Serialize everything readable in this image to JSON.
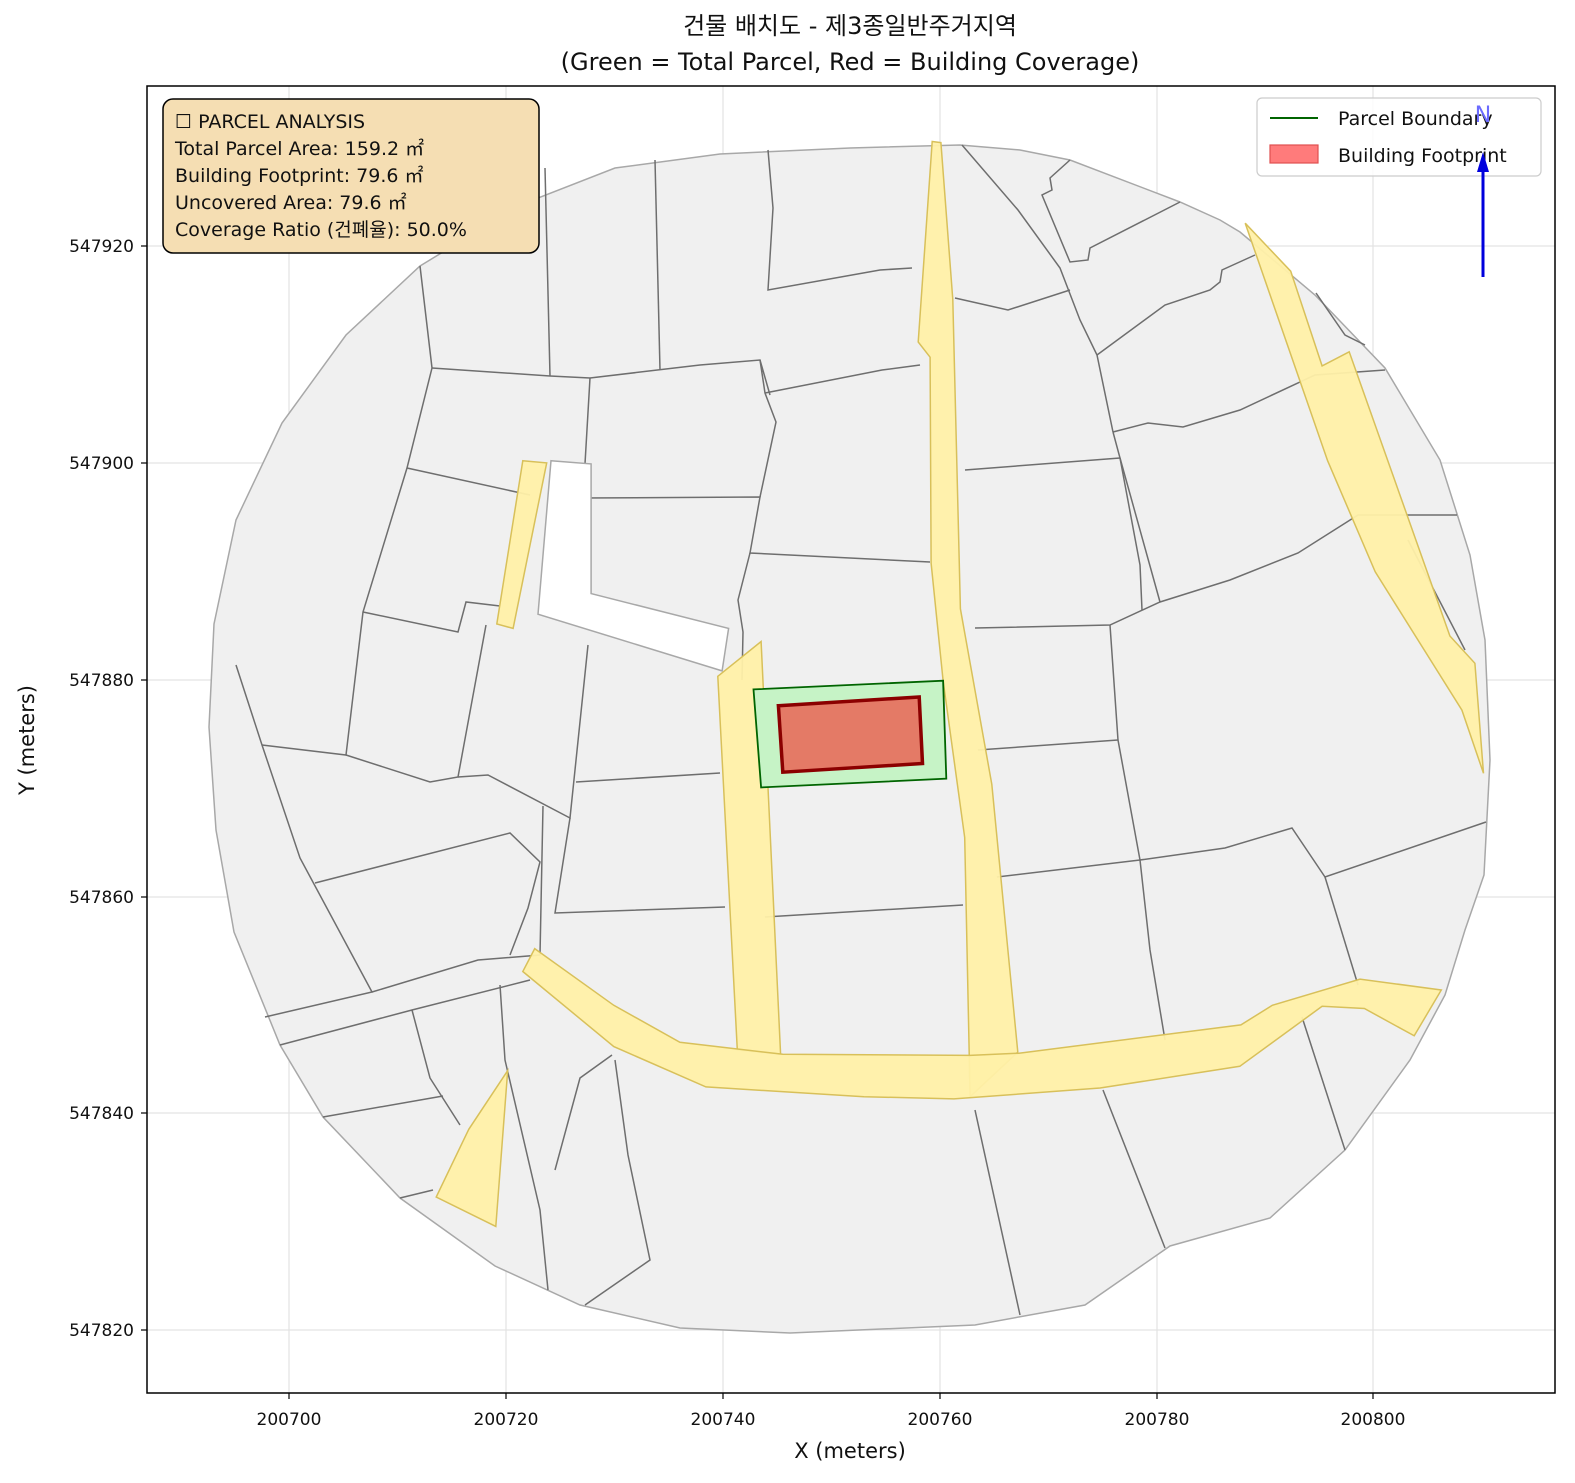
{
  "title": {
    "line1": "건물 배치도 - 제3종일반주거지역",
    "line2": "(Green = Total Parcel, Red = Building Coverage)"
  },
  "axes": {
    "xlabel": "X (meters)",
    "ylabel": "Y (meters)",
    "xlim": [
      200687,
      200817
    ],
    "ylim": [
      547814,
      547934
    ],
    "xticks": [
      200700,
      200720,
      200740,
      200760,
      200780,
      200800
    ],
    "yticks": [
      547820,
      547840,
      547860,
      547880,
      547900,
      547920
    ],
    "grid": true
  },
  "info_box": {
    "heading": "☐ PARCEL ANALYSIS",
    "total_area": "Total Parcel Area: 159.2 ㎡",
    "footprint": "Building Footprint: 79.6 ㎡",
    "uncovered": "Uncovered Area: 79.6 ㎡",
    "coverage": "Coverage Ratio (건폐율): 50.0%"
  },
  "legend": {
    "parcel_boundary": "Parcel Boundary",
    "building_footprint": "Building Footprint",
    "placement": "top-right"
  },
  "north_arrow": {
    "label": "N"
  },
  "colors": {
    "parcel_fill": "#c6f3c6",
    "parcel_edge": "#006400",
    "building_fill": "#e47a66",
    "building_edge": "#8b0000",
    "road_fill": "#fff0a8",
    "road_edge": "#d8c05a",
    "lot_fill": "#f0f0f0",
    "lot_edge": "#6e6e6e",
    "info_bg": "#f5deb3",
    "arrow": "#0000dd"
  },
  "chart_data": {
    "type": "map",
    "target_parcel": [
      [
        200743,
        547878.6
      ],
      [
        200760.5,
        547879.4
      ],
      [
        200760.8,
        547870.4
      ],
      [
        200743.7,
        547869.6
      ]
    ],
    "building_footprint": [
      [
        200745.3,
        547877.1
      ],
      [
        200758.3,
        547877.9
      ],
      [
        200758.6,
        547871.8
      ],
      [
        200745.7,
        547871
      ]
    ],
    "roads": [
      [
        [
          200721.7,
          547899.6
        ],
        [
          200723.9,
          547899.4
        ],
        [
          200720.8,
          547884.2
        ],
        [
          200719.3,
          547884.6
        ]
      ],
      [
        [
          200739.7,
          547879.8
        ],
        [
          200743.7,
          547883
        ],
        [
          200745.5,
          547845.1
        ],
        [
          200741.5,
          547845.5
        ]
      ],
      [
        [
          200760.3,
          547928.8
        ],
        [
          200759.5,
          547928.9
        ],
        [
          200758.2,
          547910.5
        ],
        [
          200759.3,
          547909.1
        ],
        [
          200759.4,
          547890.2
        ],
        [
          200760.5,
          547879.4
        ],
        [
          200762.5,
          547865
        ],
        [
          200763,
          547841.2
        ],
        [
          200767.4,
          547845.3
        ],
        [
          200765,
          547869.9
        ],
        [
          200762.1,
          547886
        ],
        [
          200761.4,
          547914.4
        ]
      ],
      [
        [
          200722.8,
          547854.8
        ],
        [
          200730.1,
          547849.6
        ],
        [
          200736.2,
          547846.2
        ],
        [
          200745.7,
          547845.1
        ],
        [
          200763,
          547845
        ],
        [
          200767.5,
          547845.2
        ],
        [
          200788,
          547847.8
        ],
        [
          200790.9,
          547849.6
        ],
        [
          200799,
          547852
        ],
        [
          200806.5,
          547851
        ],
        [
          200804,
          547846.8
        ],
        [
          200799.4,
          547849.3
        ],
        [
          200795.5,
          547849.5
        ],
        [
          200787.9,
          547844
        ],
        [
          200775,
          547842
        ],
        [
          200761.5,
          547841
        ],
        [
          200753.2,
          547841.2
        ],
        [
          200738.6,
          547842.1
        ],
        [
          200730.1,
          547845.8
        ],
        [
          200721.7,
          547852.7
        ]
      ],
      [
        [
          200788.4,
          547921.4
        ],
        [
          200792.6,
          547917
        ],
        [
          200795.5,
          547908.3
        ],
        [
          200798,
          547909.6
        ],
        [
          200807.3,
          547883.5
        ],
        [
          200809.6,
          547881
        ],
        [
          200810.4,
          547870.9
        ],
        [
          200808.4,
          547876.7
        ],
        [
          200800.4,
          547889.4
        ],
        [
          200796,
          547899.6
        ]
      ],
      [
        [
          200716.7,
          547838.2
        ],
        [
          200713.7,
          547832
        ],
        [
          200719.2,
          547829.3
        ],
        [
          200720.3,
          547843.6
        ]
      ]
    ],
    "blank_area": [
      [
        200724.3,
        547899.6
      ],
      [
        200728,
        547899.3
      ],
      [
        200728,
        547887.4
      ],
      [
        200740.7,
        547884.2
      ],
      [
        200740.1,
        547880.3
      ],
      [
        200723.1,
        547885.5
      ]
    ]
  }
}
